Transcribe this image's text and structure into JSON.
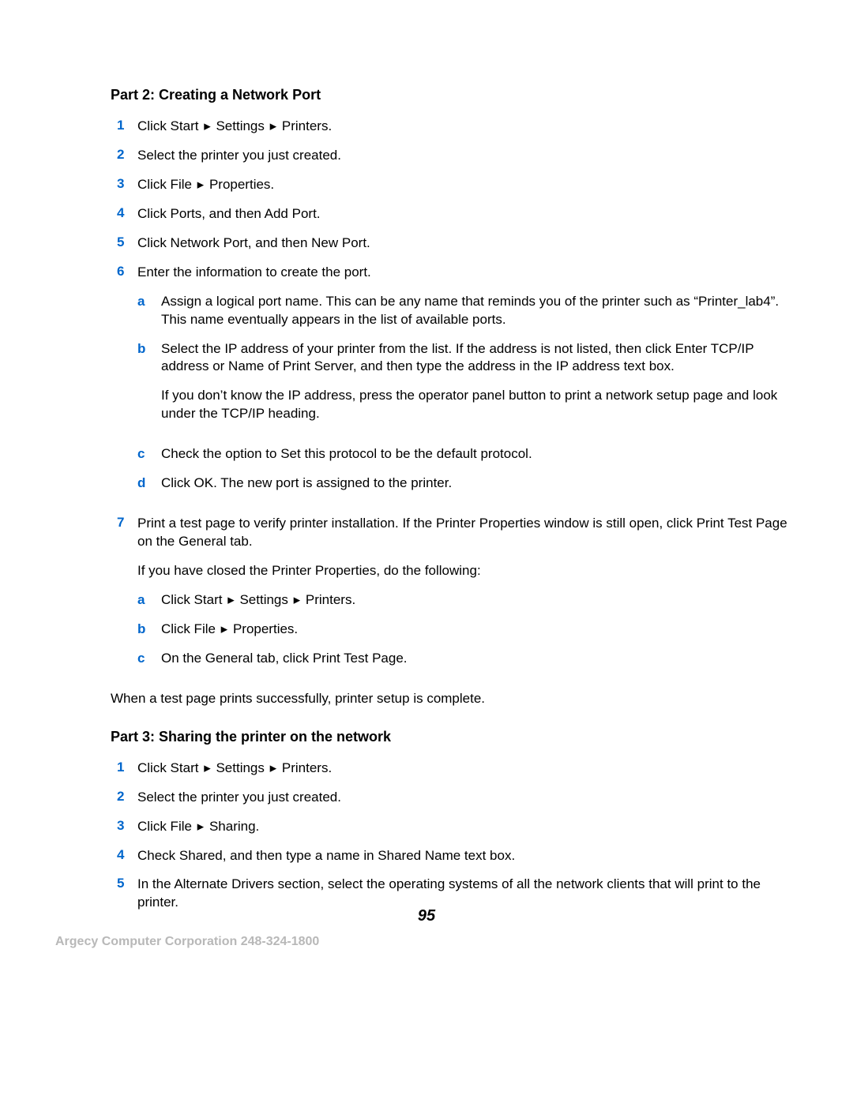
{
  "style": {
    "accent_color": "#0066cc",
    "body_color": "#000000",
    "footer_color": "#b8b8b8",
    "background_color": "#ffffff",
    "body_fontsize_pt": 12.5,
    "heading_fontsize_pt": 13.5,
    "arrow_glyph": "▸"
  },
  "part2": {
    "heading": "Part 2: Creating a Network Port",
    "steps": {
      "s1": {
        "n": "1",
        "text_a": "Click Start ",
        "text_b": " Settings ",
        "text_c": " Printers."
      },
      "s2": {
        "n": "2",
        "text": "Select the printer you just created."
      },
      "s3": {
        "n": "3",
        "text_a": "Click File ",
        "text_b": " Properties."
      },
      "s4": {
        "n": "4",
        "text": "Click Ports, and then Add Port."
      },
      "s5": {
        "n": "5",
        "text": "Click Network Port, and then New Port."
      },
      "s6": {
        "n": "6",
        "text": "Enter the information to create the port.",
        "a": {
          "m": "a",
          "text": "Assign a logical port name. This can be any name that reminds you of the printer such as “Printer_lab4”. This name eventually appears in the list of available ports."
        },
        "b": {
          "m": "b",
          "p1": "Select the IP address of your printer from the list. If the address is not listed, then click Enter TCP/IP address or Name of Print Server, and then type the address in the IP address text box.",
          "p2": "If you don’t know the IP address, press the operator panel button to print a network setup page and look under the TCP/IP heading."
        },
        "c": {
          "m": "c",
          "text": "Check the option to Set this protocol to be the default protocol."
        },
        "d": {
          "m": "d",
          "text": "Click OK. The new port is assigned to the printer."
        }
      },
      "s7": {
        "n": "7",
        "p1": "Print a test page to verify printer installation. If the Printer Properties window is still open, click Print Test Page on the General tab.",
        "p2": "If you have closed the Printer Properties, do the following:",
        "a": {
          "m": "a",
          "text_a": "Click Start ",
          "text_b": " Settings ",
          "text_c": " Printers."
        },
        "b": {
          "m": "b",
          "text_a": "Click File ",
          "text_b": " Properties."
        },
        "c": {
          "m": "c",
          "text": "On the General tab, click Print Test Page."
        }
      }
    },
    "closing": "When a test page prints successfully, printer setup is complete."
  },
  "part3": {
    "heading": "Part 3: Sharing the printer on the network",
    "steps": {
      "s1": {
        "n": "1",
        "text_a": "Click Start ",
        "text_b": " Settings ",
        "text_c": " Printers."
      },
      "s2": {
        "n": "2",
        "text": "Select the printer you just created."
      },
      "s3": {
        "n": "3",
        "text_a": "Click File ",
        "text_b": " Sharing."
      },
      "s4": {
        "n": "4",
        "text": "Check Shared, and then type a name in Shared Name text box."
      },
      "s5": {
        "n": "5",
        "text": "In the Alternate Drivers section, select the operating systems of all the network clients that will print to the printer."
      }
    }
  },
  "page_number": "95",
  "footer": "Argecy Computer Corporation 248-324-1800"
}
